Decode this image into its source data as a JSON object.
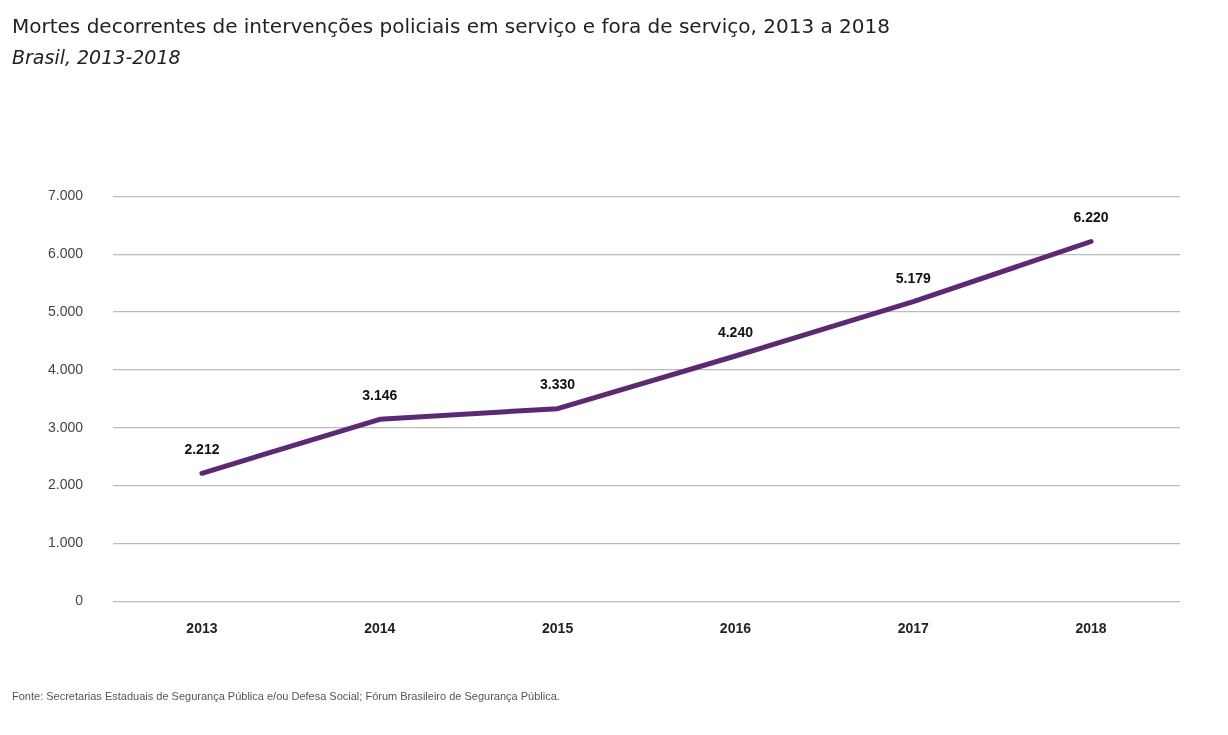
{
  "chart_data": {
    "type": "line",
    "title": "Mortes decorrentes de intervenções policiais em serviço e fora de serviço, 2013 a 2018",
    "subtitle": "Brasil, 2013-2018",
    "categories": [
      "2013",
      "2014",
      "2015",
      "2016",
      "2017",
      "2018"
    ],
    "series": [
      {
        "color": "#5c2a72",
        "values": [
          2212,
          3146,
          3330,
          4240,
          5179,
          6220
        ],
        "value_labels": [
          "2.212",
          "3.146",
          "3.330",
          "4.240",
          "5.179",
          "6.220"
        ]
      }
    ],
    "ylim": [
      0,
      7000
    ],
    "yticks": [
      {
        "value": 0,
        "label": "0"
      },
      {
        "value": 1000,
        "label": "1.000"
      },
      {
        "value": 2000,
        "label": "2.000"
      },
      {
        "value": 3000,
        "label": "3.000"
      },
      {
        "value": 4000,
        "label": "4.000"
      },
      {
        "value": 5000,
        "label": "5.000"
      },
      {
        "value": 6000,
        "label": "6.000"
      },
      {
        "value": 7000,
        "label": "7.000"
      }
    ],
    "grid": "y",
    "legend": false,
    "marker": "none",
    "line_style": "solid",
    "annotations": [
      "Fonte: Secretarias Estaduais de Segurança Pública e/ou Defesa Social; Fórum Brasileiro de Segurança Pública."
    ]
  }
}
